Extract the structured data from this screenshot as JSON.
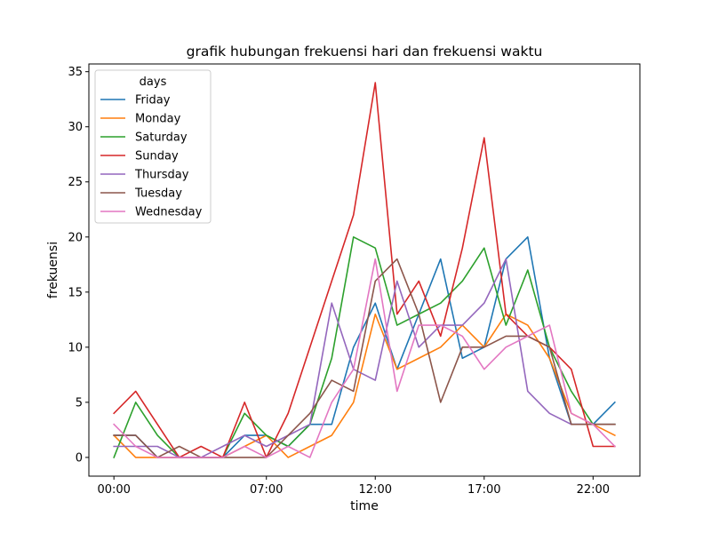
{
  "chart_data": {
    "type": "line",
    "title": "grafik hubungan frekuensi hari dan frekuensi waktu",
    "xlabel": "time",
    "ylabel": "frekuensi",
    "x": [
      0,
      1,
      2,
      3,
      4,
      5,
      6,
      7,
      8,
      9,
      10,
      11,
      12,
      13,
      14,
      15,
      16,
      17,
      18,
      19,
      20,
      21,
      22,
      23
    ],
    "xlim": [
      -1.15,
      24.15
    ],
    "ylim": [
      -1.7,
      35.7
    ],
    "x_ticks": [
      {
        "value": 0,
        "label": "00:00"
      },
      {
        "value": 7,
        "label": "07:00"
      },
      {
        "value": 12,
        "label": "12:00"
      },
      {
        "value": 17,
        "label": "17:00"
      },
      {
        "value": 22,
        "label": "22:00"
      }
    ],
    "y_ticks": [
      0,
      5,
      10,
      15,
      20,
      25,
      30,
      35
    ],
    "grid": false,
    "legend": {
      "title": "days",
      "placement": "top-left"
    },
    "series": [
      {
        "name": "Friday",
        "color": "#1f77b4",
        "values": [
          2,
          2,
          0,
          0,
          0,
          0,
          2,
          2,
          1,
          3,
          3,
          10,
          14,
          8,
          13,
          18,
          9,
          10,
          18,
          20,
          9,
          3,
          3,
          5
        ]
      },
      {
        "name": "Monday",
        "color": "#ff7f0e",
        "values": [
          2,
          0,
          0,
          0,
          0,
          0,
          1,
          2,
          0,
          1,
          2,
          5,
          13,
          8,
          9,
          10,
          12,
          10,
          13,
          12,
          9,
          4,
          3,
          2
        ]
      },
      {
        "name": "Saturday",
        "color": "#2ca02c",
        "values": [
          0,
          5,
          2,
          0,
          0,
          0,
          4,
          2,
          1,
          3,
          9,
          20,
          19,
          12,
          13,
          14,
          16,
          19,
          12,
          17,
          10,
          6,
          3,
          3
        ]
      },
      {
        "name": "Sunday",
        "color": "#d62728",
        "values": [
          4,
          6,
          3,
          0,
          1,
          0,
          5,
          0,
          4,
          10,
          16,
          22,
          34,
          13,
          16,
          11,
          19,
          29,
          13,
          11,
          10,
          8,
          1,
          1
        ]
      },
      {
        "name": "Thursday",
        "color": "#9467bd",
        "values": [
          1,
          1,
          1,
          0,
          0,
          1,
          2,
          1,
          2,
          3,
          14,
          8,
          7,
          16,
          10,
          12,
          12,
          14,
          18,
          6,
          4,
          3,
          3,
          3
        ]
      },
      {
        "name": "Tuesday",
        "color": "#8c564b",
        "values": [
          2,
          2,
          0,
          1,
          0,
          0,
          0,
          0,
          2,
          4,
          7,
          6,
          16,
          18,
          13,
          5,
          10,
          10,
          11,
          11,
          10,
          3,
          3,
          3
        ]
      },
      {
        "name": "Wednesday",
        "color": "#e377c2",
        "values": [
          3,
          1,
          0,
          0,
          0,
          0,
          1,
          0,
          1,
          0,
          5,
          8,
          18,
          6,
          12,
          12,
          11,
          8,
          10,
          11,
          12,
          4,
          3,
          1
        ]
      }
    ]
  }
}
